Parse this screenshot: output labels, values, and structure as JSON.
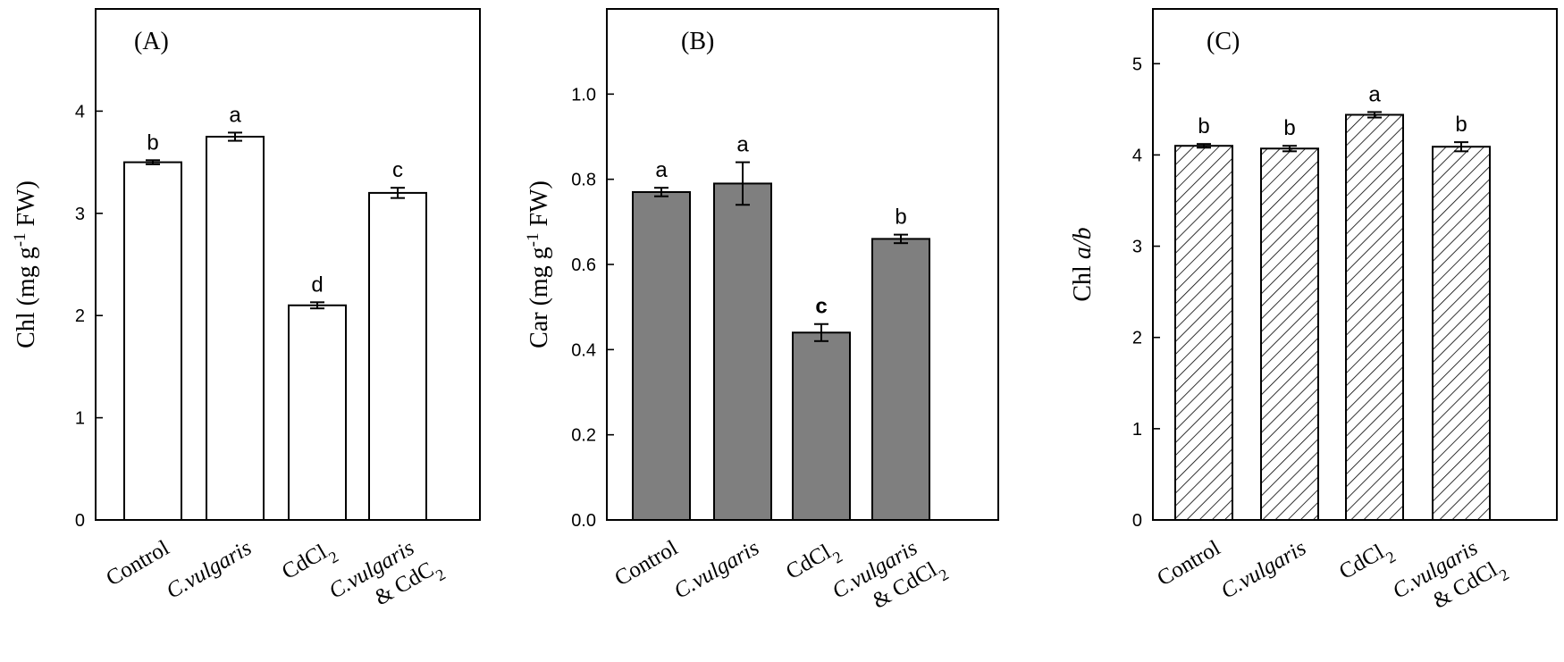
{
  "chart_data": [
    {
      "type": "bar",
      "panel_label": "(A)",
      "ylabel_parts": [
        "Chl (mg g",
        "-1",
        " FW)"
      ],
      "ylim": [
        0,
        5
      ],
      "yticks": [
        0,
        1,
        2,
        3,
        4
      ],
      "ytick_labels": [
        "0",
        "1",
        "2",
        "3",
        "4"
      ],
      "grid": false,
      "bar_fill": "#ffffff",
      "hatch": false,
      "categories": [
        {
          "line1": [
            {
              "t": "Control",
              "i": false
            }
          ],
          "line2": []
        },
        {
          "line1": [
            {
              "t": "C.vulgaris",
              "i": true
            }
          ],
          "line2": []
        },
        {
          "line1": [
            {
              "t": "CdCl",
              "i": false
            },
            {
              "t": "2",
              "sub": true
            }
          ],
          "line2": []
        },
        {
          "line1": [
            {
              "t": "C.vulgaris",
              "i": true
            }
          ],
          "line2": [
            {
              "t": "& CdC",
              "i": false
            },
            {
              "t": "2",
              "sub": true
            }
          ]
        }
      ],
      "values": [
        3.5,
        3.75,
        2.1,
        3.2
      ],
      "errors": [
        0.02,
        0.04,
        0.03,
        0.05
      ],
      "letters": [
        "b",
        "a",
        "d",
        "c"
      ]
    },
    {
      "type": "bar",
      "panel_label": "(B)",
      "ylabel_parts": [
        "Car (mg g",
        "-1",
        " FW)"
      ],
      "ylim": [
        0,
        1.2
      ],
      "yticks": [
        0,
        0.2,
        0.4,
        0.6,
        0.8,
        1.0
      ],
      "ytick_labels": [
        "0.0",
        "0.2",
        "0.4",
        "0.6",
        "0.8",
        "1.0"
      ],
      "grid": false,
      "bar_fill": "#7f7f7f",
      "hatch": false,
      "categories": [
        {
          "line1": [
            {
              "t": "Control",
              "i": false
            }
          ],
          "line2": []
        },
        {
          "line1": [
            {
              "t": "C.vulgaris",
              "i": true
            }
          ],
          "line2": []
        },
        {
          "line1": [
            {
              "t": "CdCl",
              "i": false
            },
            {
              "t": "2",
              "sub": true
            }
          ],
          "line2": []
        },
        {
          "line1": [
            {
              "t": "C.vulgaris",
              "i": true
            }
          ],
          "line2": [
            {
              "t": "& CdCl",
              "i": false
            },
            {
              "t": "2",
              "sub": true
            }
          ]
        }
      ],
      "values": [
        0.77,
        0.79,
        0.44,
        0.66
      ],
      "errors": [
        0.01,
        0.05,
        0.02,
        0.01
      ],
      "letters": [
        "a",
        "a",
        "c",
        "b"
      ]
    },
    {
      "type": "bar",
      "panel_label": "(C)",
      "ylabel_parts": [
        "Chl ",
        "a/b"
      ],
      "ylim": [
        0,
        5.6
      ],
      "yticks": [
        0,
        1,
        2,
        3,
        4,
        5
      ],
      "ytick_labels": [
        "0",
        "1",
        "2",
        "3",
        "4",
        "5"
      ],
      "grid": false,
      "bar_fill": "#ffffff",
      "hatch": true,
      "categories": [
        {
          "line1": [
            {
              "t": "Control",
              "i": false
            }
          ],
          "line2": []
        },
        {
          "line1": [
            {
              "t": "C.vulgaris",
              "i": true
            }
          ],
          "line2": []
        },
        {
          "line1": [
            {
              "t": "CdCl",
              "i": false
            },
            {
              "t": "2",
              "sub": true
            }
          ],
          "line2": []
        },
        {
          "line1": [
            {
              "t": "C.vulgaris",
              "i": true
            }
          ],
          "line2": [
            {
              "t": "& CdCl",
              "i": false
            },
            {
              "t": "2",
              "sub": true
            }
          ]
        }
      ],
      "values": [
        4.1,
        4.07,
        4.44,
        4.09
      ],
      "errors": [
        0.02,
        0.03,
        0.03,
        0.05
      ],
      "letters": [
        "b",
        "b",
        "a",
        "b"
      ]
    }
  ]
}
